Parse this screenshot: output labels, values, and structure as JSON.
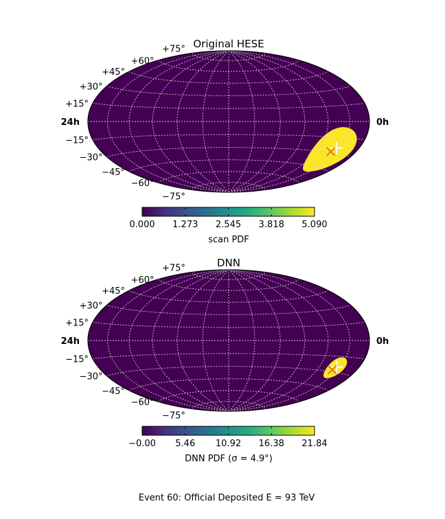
{
  "chart_data": [
    {
      "type": "heatmap",
      "projection": "hammer",
      "title": "Original HESE",
      "colormap": "viridis",
      "colorbar": {
        "label": "scan PDF",
        "min": 0.0,
        "max": 5.09,
        "ticks": [
          "0.000",
          "1.273",
          "2.545",
          "3.818",
          "5.090"
        ]
      },
      "lat_tick_labels": [
        "+75°",
        "+60°",
        "+45°",
        "+30°",
        "+15°",
        "−15°",
        "−30°",
        "−45°",
        "−60°",
        "−75°"
      ],
      "ra_left_label": "24h",
      "ra_right_label": "0h",
      "grid": true,
      "hotspot": {
        "ra_deg": 38,
        "dec_deg": -28,
        "peak": 5.09,
        "spread_deg": 11
      },
      "markers": [
        {
          "kind": "white-plus",
          "ra_deg": 35,
          "dec_deg": -25
        },
        {
          "kind": "orange-x",
          "ra_deg": 39,
          "dec_deg": -29
        }
      ]
    },
    {
      "type": "heatmap",
      "projection": "hammer",
      "title": "DNN",
      "colormap": "viridis",
      "colorbar": {
        "label": "DNN PDF (σ = 4.9°)",
        "min": 0.0,
        "max": 21.84,
        "ticks": [
          "−0.00",
          "5.46",
          "10.92",
          "16.38",
          "21.84"
        ]
      },
      "lat_tick_labels": [
        "+75°",
        "+60°",
        "+45°",
        "+30°",
        "+15°",
        "−15°",
        "−30°",
        "−45°",
        "−60°",
        "−75°"
      ],
      "ra_left_label": "24h",
      "ra_right_label": "0h",
      "grid": true,
      "hotspot": {
        "ra_deg": 35,
        "dec_deg": -26,
        "peak": 21.84,
        "spread_deg": 5
      },
      "markers": [
        {
          "kind": "white-plus",
          "ra_deg": 35,
          "dec_deg": -25
        },
        {
          "kind": "orange-x",
          "ra_deg": 38,
          "dec_deg": -28
        }
      ]
    }
  ],
  "caption": "Event 60: Official Deposited E = 93 TeV",
  "colors": {
    "background_map": "#440154",
    "grid": "#cccccc",
    "marker_plus": "#ffffff",
    "marker_x": "#e8761a"
  }
}
